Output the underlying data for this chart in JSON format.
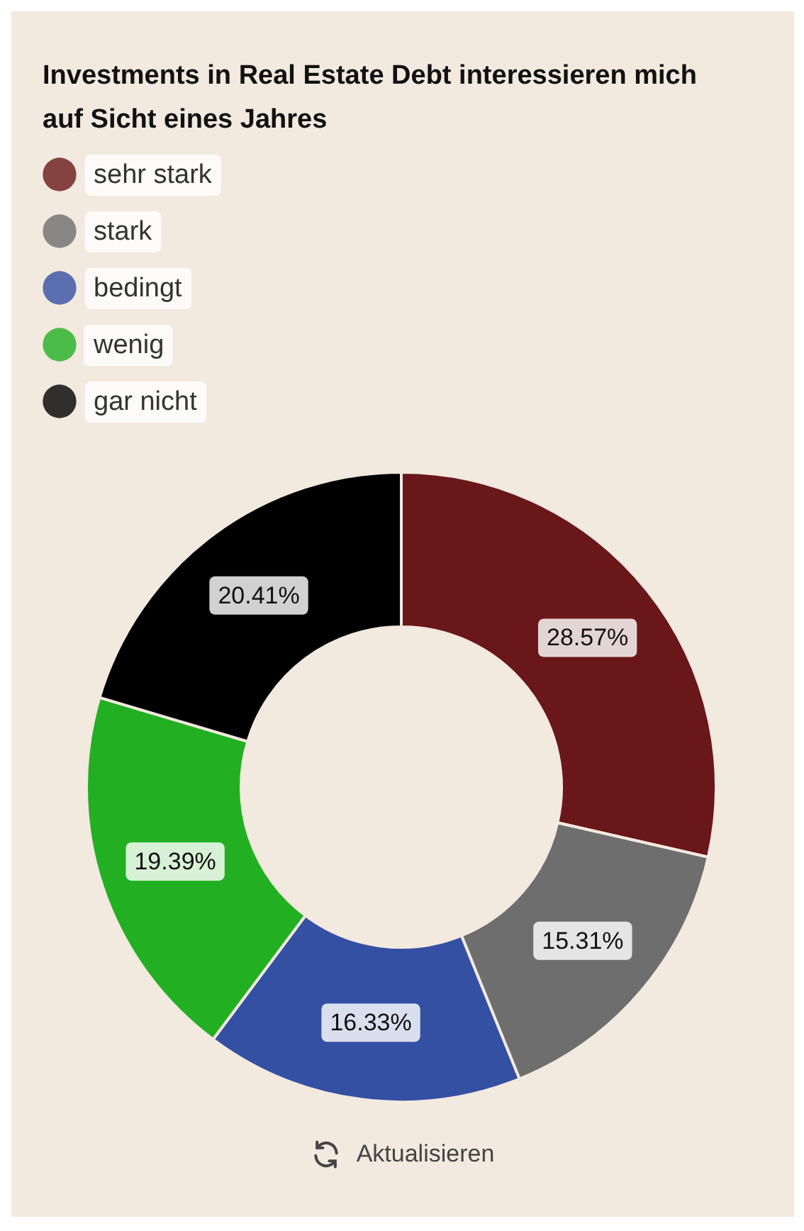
{
  "chart_data": {
    "type": "donut",
    "title": "Investments in Real Estate Debt interessieren mich auf Sicht eines Jahres",
    "categories": [
      "sehr stark",
      "stark",
      "bedingt",
      "wenig",
      "gar nicht"
    ],
    "values": [
      28.57,
      15.31,
      16.33,
      19.39,
      20.41
    ],
    "value_labels": [
      "28.57%",
      "15.31%",
      "16.33%",
      "19.39%",
      "20.41%"
    ],
    "colors": [
      "#6a1719",
      "#6e6e6e",
      "#3350a3",
      "#22b022",
      "#000000"
    ],
    "legend": "top left",
    "annotations": [
      "Aktualisieren"
    ]
  }
}
